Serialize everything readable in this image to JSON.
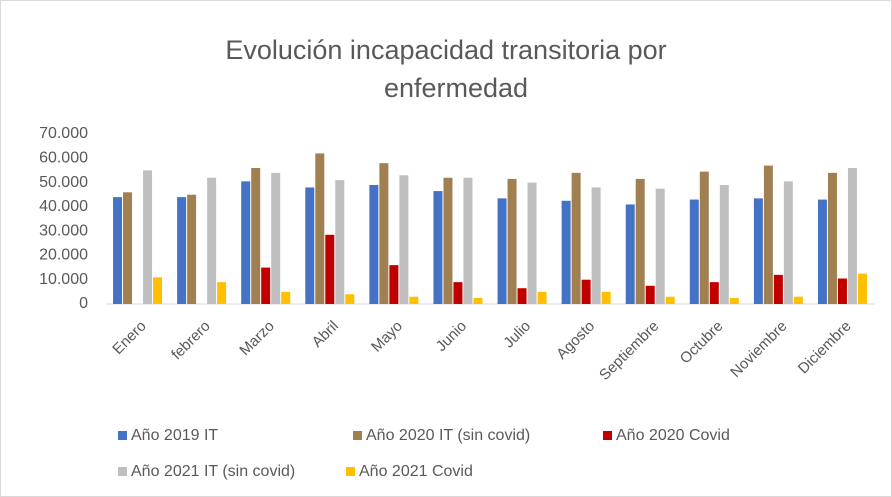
{
  "chart_data": {
    "type": "bar",
    "title_lines": [
      "Evolución incapacidad transitoria por",
      "enfermedad"
    ],
    "categories": [
      "Enero",
      "febrero",
      "Marzo",
      "Abril",
      "Mayo",
      "Junio",
      "Julio",
      "Agosto",
      "Septiembre",
      "Octubre",
      "Noviembre",
      "Diciembre"
    ],
    "series": [
      {
        "name": "Año 2019 IT",
        "color": "#4472c4",
        "values": [
          44000,
          44000,
          50500,
          48000,
          49000,
          46500,
          43500,
          42500,
          41000,
          43000,
          43500,
          43000
        ]
      },
      {
        "name": "Año 2020 IT (sin covid)",
        "color": "#a08050",
        "values": [
          46000,
          45000,
          56000,
          62000,
          58000,
          52000,
          51500,
          54000,
          51500,
          54500,
          57000,
          54000
        ]
      },
      {
        "name": "Año 2020 Covid",
        "color": "#c00000",
        "values": [
          null,
          null,
          15000,
          28500,
          16000,
          9000,
          6500,
          10000,
          7500,
          9000,
          12000,
          10500
        ]
      },
      {
        "name": "Año 2021 IT (sin covid)",
        "color": "#bfbfbf",
        "values": [
          55000,
          52000,
          54000,
          51000,
          53000,
          52000,
          50000,
          48000,
          47500,
          49000,
          50500,
          56000
        ]
      },
      {
        "name": "Año 2021 Covid",
        "color": "#ffc000",
        "values": [
          11000,
          9000,
          5000,
          4000,
          3000,
          2500,
          5000,
          5000,
          3000,
          2500,
          3000,
          12500
        ]
      }
    ],
    "ylim": [
      0,
      70000
    ],
    "yticks": [
      0,
      {
        "value": 10000,
        "label": "10.000"
      },
      {
        "value": 20000,
        "label": "20.000"
      },
      {
        "value": 30000,
        "label": "30.000"
      },
      {
        "value": 40000,
        "label": "40.000"
      },
      {
        "value": 50000,
        "label": "50.000"
      },
      {
        "value": 60000,
        "label": "60.000"
      },
      {
        "value": 70000,
        "label": "70.000"
      }
    ],
    "grid": false,
    "legend": "bottom"
  }
}
